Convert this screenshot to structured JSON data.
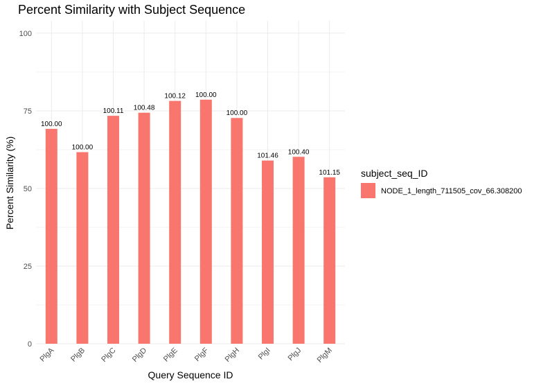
{
  "chart_data": {
    "type": "bar",
    "title": "Percent Similarity with Subject Sequence",
    "xlabel": "Query Sequence ID",
    "ylabel": "Percent Similarity (%)",
    "ylim": [
      0,
      104
    ],
    "yticks": [
      0,
      25,
      50,
      75,
      100
    ],
    "grid": true,
    "legend_position": "right",
    "categories": [
      "PlgA",
      "PlgB",
      "PlgC",
      "PlgD",
      "PlgE",
      "PlgF",
      "PlgH",
      "PlgI",
      "PlgJ",
      "PlgM"
    ],
    "series": [
      {
        "name": "NODE_1_length_711505_cov_66.308200",
        "color": "#F8766D",
        "values": [
          69.2,
          61.7,
          73.4,
          74.4,
          78.2,
          78.6,
          72.7,
          59.0,
          60.2,
          53.6
        ],
        "labels": [
          "100.00",
          "100.00",
          "100.11",
          "100.48",
          "100.12",
          "100.00",
          "100.00",
          "101.46",
          "100.40",
          "101.15"
        ]
      }
    ],
    "legend_title": "subject_seq_ID"
  }
}
